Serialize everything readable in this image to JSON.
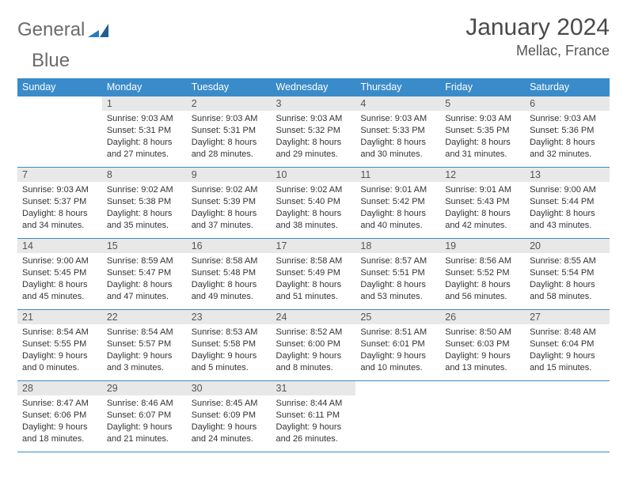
{
  "brand": {
    "word1": "General",
    "word2": "Blue",
    "text_color_gray": "#6b6b6b",
    "text_color_blue": "#2b7bbf",
    "mark_color": "#2b7bbf"
  },
  "header": {
    "month_title": "January 2024",
    "location": "Mellac, France"
  },
  "colors": {
    "header_row_bg": "#3a8bc9",
    "header_row_fg": "#ffffff",
    "daynum_bg": "#e8e8e8",
    "row_border": "#3a8bc9",
    "body_text": "#333333",
    "page_bg": "#ffffff"
  },
  "fonts": {
    "title_size_pt": 22,
    "location_size_pt": 14,
    "dayheader_size_pt": 9.5,
    "daynum_size_pt": 9.5,
    "body_size_pt": 8
  },
  "weekdays": [
    "Sunday",
    "Monday",
    "Tuesday",
    "Wednesday",
    "Thursday",
    "Friday",
    "Saturday"
  ],
  "weeks": [
    [
      {
        "n": "",
        "lines": []
      },
      {
        "n": "1",
        "lines": [
          "Sunrise: 9:03 AM",
          "Sunset: 5:31 PM",
          "Daylight: 8 hours",
          "and 27 minutes."
        ]
      },
      {
        "n": "2",
        "lines": [
          "Sunrise: 9:03 AM",
          "Sunset: 5:31 PM",
          "Daylight: 8 hours",
          "and 28 minutes."
        ]
      },
      {
        "n": "3",
        "lines": [
          "Sunrise: 9:03 AM",
          "Sunset: 5:32 PM",
          "Daylight: 8 hours",
          "and 29 minutes."
        ]
      },
      {
        "n": "4",
        "lines": [
          "Sunrise: 9:03 AM",
          "Sunset: 5:33 PM",
          "Daylight: 8 hours",
          "and 30 minutes."
        ]
      },
      {
        "n": "5",
        "lines": [
          "Sunrise: 9:03 AM",
          "Sunset: 5:35 PM",
          "Daylight: 8 hours",
          "and 31 minutes."
        ]
      },
      {
        "n": "6",
        "lines": [
          "Sunrise: 9:03 AM",
          "Sunset: 5:36 PM",
          "Daylight: 8 hours",
          "and 32 minutes."
        ]
      }
    ],
    [
      {
        "n": "7",
        "lines": [
          "Sunrise: 9:03 AM",
          "Sunset: 5:37 PM",
          "Daylight: 8 hours",
          "and 34 minutes."
        ]
      },
      {
        "n": "8",
        "lines": [
          "Sunrise: 9:02 AM",
          "Sunset: 5:38 PM",
          "Daylight: 8 hours",
          "and 35 minutes."
        ]
      },
      {
        "n": "9",
        "lines": [
          "Sunrise: 9:02 AM",
          "Sunset: 5:39 PM",
          "Daylight: 8 hours",
          "and 37 minutes."
        ]
      },
      {
        "n": "10",
        "lines": [
          "Sunrise: 9:02 AM",
          "Sunset: 5:40 PM",
          "Daylight: 8 hours",
          "and 38 minutes."
        ]
      },
      {
        "n": "11",
        "lines": [
          "Sunrise: 9:01 AM",
          "Sunset: 5:42 PM",
          "Daylight: 8 hours",
          "and 40 minutes."
        ]
      },
      {
        "n": "12",
        "lines": [
          "Sunrise: 9:01 AM",
          "Sunset: 5:43 PM",
          "Daylight: 8 hours",
          "and 42 minutes."
        ]
      },
      {
        "n": "13",
        "lines": [
          "Sunrise: 9:00 AM",
          "Sunset: 5:44 PM",
          "Daylight: 8 hours",
          "and 43 minutes."
        ]
      }
    ],
    [
      {
        "n": "14",
        "lines": [
          "Sunrise: 9:00 AM",
          "Sunset: 5:45 PM",
          "Daylight: 8 hours",
          "and 45 minutes."
        ]
      },
      {
        "n": "15",
        "lines": [
          "Sunrise: 8:59 AM",
          "Sunset: 5:47 PM",
          "Daylight: 8 hours",
          "and 47 minutes."
        ]
      },
      {
        "n": "16",
        "lines": [
          "Sunrise: 8:58 AM",
          "Sunset: 5:48 PM",
          "Daylight: 8 hours",
          "and 49 minutes."
        ]
      },
      {
        "n": "17",
        "lines": [
          "Sunrise: 8:58 AM",
          "Sunset: 5:49 PM",
          "Daylight: 8 hours",
          "and 51 minutes."
        ]
      },
      {
        "n": "18",
        "lines": [
          "Sunrise: 8:57 AM",
          "Sunset: 5:51 PM",
          "Daylight: 8 hours",
          "and 53 minutes."
        ]
      },
      {
        "n": "19",
        "lines": [
          "Sunrise: 8:56 AM",
          "Sunset: 5:52 PM",
          "Daylight: 8 hours",
          "and 56 minutes."
        ]
      },
      {
        "n": "20",
        "lines": [
          "Sunrise: 8:55 AM",
          "Sunset: 5:54 PM",
          "Daylight: 8 hours",
          "and 58 minutes."
        ]
      }
    ],
    [
      {
        "n": "21",
        "lines": [
          "Sunrise: 8:54 AM",
          "Sunset: 5:55 PM",
          "Daylight: 9 hours",
          "and 0 minutes."
        ]
      },
      {
        "n": "22",
        "lines": [
          "Sunrise: 8:54 AM",
          "Sunset: 5:57 PM",
          "Daylight: 9 hours",
          "and 3 minutes."
        ]
      },
      {
        "n": "23",
        "lines": [
          "Sunrise: 8:53 AM",
          "Sunset: 5:58 PM",
          "Daylight: 9 hours",
          "and 5 minutes."
        ]
      },
      {
        "n": "24",
        "lines": [
          "Sunrise: 8:52 AM",
          "Sunset: 6:00 PM",
          "Daylight: 9 hours",
          "and 8 minutes."
        ]
      },
      {
        "n": "25",
        "lines": [
          "Sunrise: 8:51 AM",
          "Sunset: 6:01 PM",
          "Daylight: 9 hours",
          "and 10 minutes."
        ]
      },
      {
        "n": "26",
        "lines": [
          "Sunrise: 8:50 AM",
          "Sunset: 6:03 PM",
          "Daylight: 9 hours",
          "and 13 minutes."
        ]
      },
      {
        "n": "27",
        "lines": [
          "Sunrise: 8:48 AM",
          "Sunset: 6:04 PM",
          "Daylight: 9 hours",
          "and 15 minutes."
        ]
      }
    ],
    [
      {
        "n": "28",
        "lines": [
          "Sunrise: 8:47 AM",
          "Sunset: 6:06 PM",
          "Daylight: 9 hours",
          "and 18 minutes."
        ]
      },
      {
        "n": "29",
        "lines": [
          "Sunrise: 8:46 AM",
          "Sunset: 6:07 PM",
          "Daylight: 9 hours",
          "and 21 minutes."
        ]
      },
      {
        "n": "30",
        "lines": [
          "Sunrise: 8:45 AM",
          "Sunset: 6:09 PM",
          "Daylight: 9 hours",
          "and 24 minutes."
        ]
      },
      {
        "n": "31",
        "lines": [
          "Sunrise: 8:44 AM",
          "Sunset: 6:11 PM",
          "Daylight: 9 hours",
          "and 26 minutes."
        ]
      },
      {
        "n": "",
        "lines": []
      },
      {
        "n": "",
        "lines": []
      },
      {
        "n": "",
        "lines": []
      }
    ]
  ]
}
